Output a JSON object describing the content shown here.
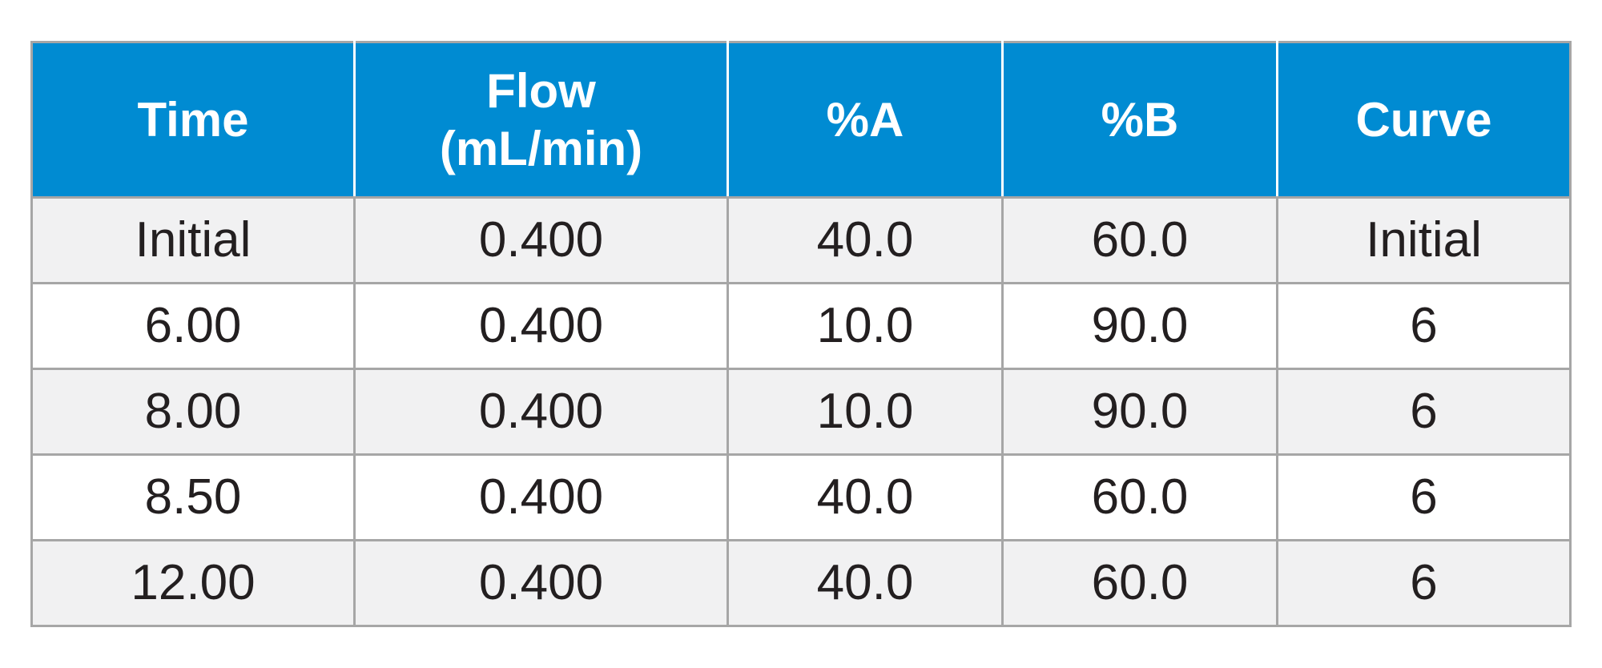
{
  "table": {
    "colors": {
      "header_bg": "#008bd2",
      "header_text": "#ffffff",
      "row_shade": "#f1f1f2",
      "row_plain": "#ffffff",
      "border": "#a6a6a6",
      "cell_text": "#231f20"
    },
    "headers": {
      "time": "Time",
      "flow_line1": "Flow",
      "flow_line2": "(mL/min)",
      "percent_a": "%A",
      "percent_b": "%B",
      "curve": "Curve"
    },
    "rows": [
      {
        "time": "Initial",
        "flow": "0.400",
        "a": "40.0",
        "b": "60.0",
        "curve": "Initial"
      },
      {
        "time": "6.00",
        "flow": "0.400",
        "a": "10.0",
        "b": "90.0",
        "curve": "6"
      },
      {
        "time": "8.00",
        "flow": "0.400",
        "a": "10.0",
        "b": "90.0",
        "curve": "6"
      },
      {
        "time": "8.50",
        "flow": "0.400",
        "a": "40.0",
        "b": "60.0",
        "curve": "6"
      },
      {
        "time": "12.00",
        "flow": "0.400",
        "a": "40.0",
        "b": "60.0",
        "curve": "6"
      }
    ]
  }
}
